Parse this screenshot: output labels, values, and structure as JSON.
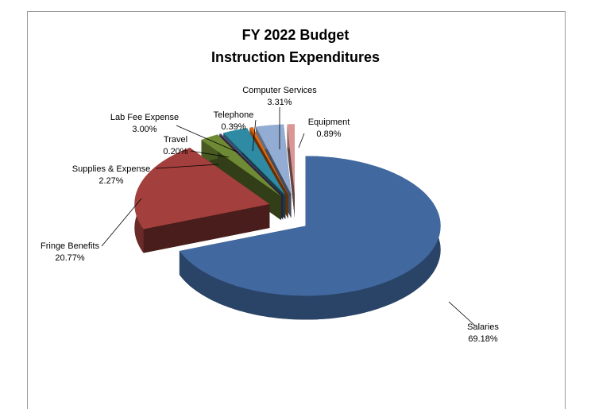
{
  "chart_data": {
    "type": "pie3d",
    "title": "FY 2022 Budget",
    "subtitle": "Instruction Expenditures",
    "categories": [
      "Salaries",
      "Fringe Benefits",
      "Supplies & Expense",
      "Travel",
      "Lab Fee Expense",
      "Telephone",
      "Computer Services",
      "Equipment"
    ],
    "values": [
      69.18,
      20.77,
      2.27,
      0.2,
      3.0,
      0.39,
      3.31,
      0.89
    ],
    "value_labels": [
      "69.18%",
      "20.77%",
      "2.27%",
      "0.20%",
      "3.00%",
      "0.39%",
      "3.31%",
      "0.89%"
    ],
    "colors": [
      "#4169a0",
      "#a3403d",
      "#6f8a34",
      "#5e4a7c",
      "#2f8aa3",
      "#e06a12",
      "#93acd3",
      "#d99694"
    ]
  }
}
